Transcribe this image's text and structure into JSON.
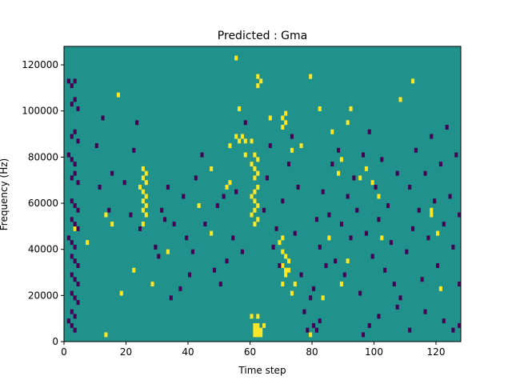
{
  "chart_data": {
    "type": "heatmap",
    "title": "Predicted : Gma",
    "xlabel": "Time step",
    "ylabel": "Frequency (Hz)",
    "xlim": [
      0,
      128
    ],
    "ylim": [
      0,
      128000
    ],
    "xticks": [
      0,
      20,
      40,
      60,
      80,
      100,
      120
    ],
    "yticks": [
      0,
      20000,
      40000,
      60000,
      80000,
      100000,
      120000
    ],
    "grid": false,
    "legend": "none",
    "value_levels": [
      "low",
      "mid",
      "high"
    ],
    "colors": {
      "low": "#440154",
      "mid": "#21918c",
      "high": "#fde725"
    },
    "background_level": "mid",
    "cells": [
      [
        61,
        1,
        "high"
      ],
      [
        62,
        1,
        "high"
      ],
      [
        63,
        1,
        "high"
      ],
      [
        61,
        2,
        "high"
      ],
      [
        62,
        2,
        "high"
      ],
      [
        63,
        2,
        "high"
      ],
      [
        61,
        3,
        "high"
      ],
      [
        62,
        3,
        "high"
      ],
      [
        64,
        3,
        "high"
      ],
      [
        60,
        5,
        "high"
      ],
      [
        62,
        5,
        "high"
      ],
      [
        73,
        10,
        "high"
      ],
      [
        70,
        12,
        "high"
      ],
      [
        71,
        14,
        "high"
      ],
      [
        71,
        15,
        "high"
      ],
      [
        70,
        16,
        "high"
      ],
      [
        72,
        17,
        "high"
      ],
      [
        71,
        18,
        "high"
      ],
      [
        70,
        19,
        "high"
      ],
      [
        69,
        21,
        "high"
      ],
      [
        70,
        22,
        "high"
      ],
      [
        61,
        25,
        "high"
      ],
      [
        62,
        26,
        "high"
      ],
      [
        60,
        27,
        "high"
      ],
      [
        61,
        28,
        "high"
      ],
      [
        62,
        29,
        "high"
      ],
      [
        61,
        30,
        "high"
      ],
      [
        60,
        31,
        "high"
      ],
      [
        61,
        32,
        "high"
      ],
      [
        62,
        33,
        "high"
      ],
      [
        61,
        35,
        "high"
      ],
      [
        62,
        36,
        "high"
      ],
      [
        61,
        37,
        "high"
      ],
      [
        60,
        38,
        "high"
      ],
      [
        62,
        39,
        "high"
      ],
      [
        61,
        40,
        "high"
      ],
      [
        70,
        46,
        "high"
      ],
      [
        71,
        47,
        "high"
      ],
      [
        70,
        48,
        "high"
      ],
      [
        71,
        49,
        "high"
      ],
      [
        62,
        55,
        "high"
      ],
      [
        63,
        56,
        "high"
      ],
      [
        62,
        57,
        "high"
      ],
      [
        25,
        25,
        "high"
      ],
      [
        26,
        27,
        "high"
      ],
      [
        25,
        28,
        "high"
      ],
      [
        26,
        29,
        "high"
      ],
      [
        25,
        30,
        "high"
      ],
      [
        26,
        31,
        "high"
      ],
      [
        25,
        32,
        "high"
      ],
      [
        24,
        33,
        "high"
      ],
      [
        26,
        34,
        "high"
      ],
      [
        25,
        35,
        "high"
      ],
      [
        26,
        36,
        "high"
      ],
      [
        25,
        37,
        "high"
      ],
      [
        58,
        43,
        "high"
      ],
      [
        58,
        40,
        "high"
      ],
      [
        57,
        44,
        "high"
      ],
      [
        95,
        35,
        "high"
      ],
      [
        97,
        37,
        "high"
      ],
      [
        99,
        34,
        "high"
      ],
      [
        101,
        31,
        "high"
      ],
      [
        102,
        22,
        "high"
      ],
      [
        108,
        52,
        "high"
      ],
      [
        118,
        27,
        "high"
      ],
      [
        120,
        23,
        "high"
      ],
      [
        121,
        11,
        "high"
      ],
      [
        112,
        56,
        "high"
      ],
      [
        3,
        24,
        "high"
      ],
      [
        7,
        21,
        "high"
      ],
      [
        13,
        27,
        "high"
      ],
      [
        15,
        25,
        "high"
      ],
      [
        17,
        53,
        "high"
      ],
      [
        13,
        1,
        "high"
      ],
      [
        18,
        10,
        "high"
      ],
      [
        22,
        15,
        "high"
      ],
      [
        28,
        12,
        "high"
      ],
      [
        33,
        19,
        "high"
      ],
      [
        43,
        29,
        "high"
      ],
      [
        47,
        37,
        "high"
      ],
      [
        47,
        23,
        "high"
      ],
      [
        53,
        42,
        "high"
      ],
      [
        56,
        50,
        "high"
      ],
      [
        55,
        61,
        "high"
      ],
      [
        60,
        43,
        "high"
      ],
      [
        66,
        48,
        "high"
      ],
      [
        73,
        41,
        "high"
      ],
      [
        76,
        42,
        "high"
      ],
      [
        82,
        50,
        "high"
      ],
      [
        79,
        57,
        "high"
      ],
      [
        86,
        45,
        "high"
      ],
      [
        88,
        36,
        "high"
      ],
      [
        89,
        39,
        "high"
      ],
      [
        91,
        47,
        "high"
      ],
      [
        92,
        50,
        "high"
      ],
      [
        79,
        1,
        "high"
      ],
      [
        85,
        22,
        "high"
      ],
      [
        83,
        9,
        "high"
      ],
      [
        89,
        12,
        "high"
      ],
      [
        91,
        17,
        "high"
      ],
      [
        74,
        12,
        "high"
      ],
      [
        72,
        15,
        "high"
      ],
      [
        55,
        44,
        "high"
      ],
      [
        56,
        43,
        "high"
      ],
      [
        52,
        33,
        "high"
      ],
      [
        53,
        34,
        "high"
      ],
      [
        118,
        28,
        "high"
      ],
      [
        1,
        56,
        "low"
      ],
      [
        2,
        55,
        "low"
      ],
      [
        3,
        56,
        "low"
      ],
      [
        2,
        51,
        "low"
      ],
      [
        3,
        52,
        "low"
      ],
      [
        4,
        50,
        "low"
      ],
      [
        2,
        44,
        "low"
      ],
      [
        3,
        45,
        "low"
      ],
      [
        4,
        43,
        "low"
      ],
      [
        1,
        40,
        "low"
      ],
      [
        2,
        39,
        "low"
      ],
      [
        3,
        38,
        "low"
      ],
      [
        2,
        35,
        "low"
      ],
      [
        3,
        36,
        "low"
      ],
      [
        4,
        34,
        "low"
      ],
      [
        2,
        30,
        "low"
      ],
      [
        3,
        29,
        "low"
      ],
      [
        4,
        28,
        "low"
      ],
      [
        2,
        26,
        "low"
      ],
      [
        3,
        25,
        "low"
      ],
      [
        4,
        24,
        "low"
      ],
      [
        1,
        22,
        "low"
      ],
      [
        2,
        21,
        "low"
      ],
      [
        3,
        20,
        "low"
      ],
      [
        2,
        18,
        "low"
      ],
      [
        3,
        17,
        "low"
      ],
      [
        4,
        16,
        "low"
      ],
      [
        2,
        14,
        "low"
      ],
      [
        3,
        13,
        "low"
      ],
      [
        4,
        12,
        "low"
      ],
      [
        2,
        10,
        "low"
      ],
      [
        3,
        9,
        "low"
      ],
      [
        4,
        8,
        "low"
      ],
      [
        2,
        6,
        "low"
      ],
      [
        3,
        5,
        "low"
      ],
      [
        1,
        4,
        "low"
      ],
      [
        2,
        3,
        "low"
      ],
      [
        3,
        2,
        "low"
      ],
      [
        10,
        42,
        "low"
      ],
      [
        12,
        48,
        "low"
      ],
      [
        11,
        33,
        "low"
      ],
      [
        14,
        28,
        "low"
      ],
      [
        15,
        36,
        "low"
      ],
      [
        19,
        34,
        "low"
      ],
      [
        21,
        27,
        "low"
      ],
      [
        22,
        41,
        "low"
      ],
      [
        23,
        47,
        "low"
      ],
      [
        24,
        24,
        "low"
      ],
      [
        29,
        20,
        "low"
      ],
      [
        30,
        18,
        "low"
      ],
      [
        31,
        28,
        "low"
      ],
      [
        32,
        26,
        "low"
      ],
      [
        33,
        33,
        "low"
      ],
      [
        34,
        9,
        "low"
      ],
      [
        35,
        25,
        "low"
      ],
      [
        37,
        11,
        "low"
      ],
      [
        38,
        31,
        "low"
      ],
      [
        39,
        22,
        "low"
      ],
      [
        40,
        14,
        "low"
      ],
      [
        41,
        19,
        "low"
      ],
      [
        42,
        35,
        "low"
      ],
      [
        44,
        40,
        "low"
      ],
      [
        45,
        25,
        "low"
      ],
      [
        48,
        15,
        "low"
      ],
      [
        49,
        29,
        "low"
      ],
      [
        50,
        12,
        "low"
      ],
      [
        51,
        31,
        "low"
      ],
      [
        52,
        17,
        "low"
      ],
      [
        54,
        22,
        "low"
      ],
      [
        55,
        32,
        "low"
      ],
      [
        57,
        19,
        "low"
      ],
      [
        58,
        47,
        "low"
      ],
      [
        64,
        28,
        "low"
      ],
      [
        65,
        35,
        "low"
      ],
      [
        66,
        42,
        "low"
      ],
      [
        67,
        20,
        "low"
      ],
      [
        68,
        24,
        "low"
      ],
      [
        69,
        16,
        "low"
      ],
      [
        70,
        30,
        "low"
      ],
      [
        72,
        38,
        "low"
      ],
      [
        73,
        44,
        "low"
      ],
      [
        74,
        23,
        "low"
      ],
      [
        75,
        33,
        "low"
      ],
      [
        76,
        14,
        "low"
      ],
      [
        77,
        6,
        "low"
      ],
      [
        78,
        2,
        "low"
      ],
      [
        79,
        9,
        "low"
      ],
      [
        80,
        11,
        "low"
      ],
      [
        81,
        26,
        "low"
      ],
      [
        82,
        20,
        "low"
      ],
      [
        83,
        32,
        "low"
      ],
      [
        84,
        16,
        "low"
      ],
      [
        85,
        27,
        "low"
      ],
      [
        86,
        38,
        "low"
      ],
      [
        87,
        17,
        "low"
      ],
      [
        88,
        41,
        "low"
      ],
      [
        89,
        25,
        "low"
      ],
      [
        90,
        14,
        "low"
      ],
      [
        91,
        31,
        "low"
      ],
      [
        92,
        22,
        "low"
      ],
      [
        93,
        35,
        "low"
      ],
      [
        94,
        28,
        "low"
      ],
      [
        95,
        10,
        "low"
      ],
      [
        96,
        40,
        "low"
      ],
      [
        97,
        23,
        "low"
      ],
      [
        98,
        45,
        "low"
      ],
      [
        99,
        18,
        "low"
      ],
      [
        100,
        33,
        "low"
      ],
      [
        101,
        26,
        "low"
      ],
      [
        102,
        39,
        "low"
      ],
      [
        103,
        15,
        "low"
      ],
      [
        104,
        29,
        "low"
      ],
      [
        105,
        21,
        "low"
      ],
      [
        106,
        12,
        "low"
      ],
      [
        107,
        36,
        "low"
      ],
      [
        108,
        9,
        "low"
      ],
      [
        110,
        19,
        "low"
      ],
      [
        111,
        33,
        "low"
      ],
      [
        112,
        24,
        "low"
      ],
      [
        113,
        41,
        "low"
      ],
      [
        114,
        28,
        "low"
      ],
      [
        115,
        13,
        "low"
      ],
      [
        116,
        36,
        "low"
      ],
      [
        117,
        22,
        "low"
      ],
      [
        118,
        44,
        "low"
      ],
      [
        119,
        30,
        "low"
      ],
      [
        120,
        16,
        "low"
      ],
      [
        121,
        38,
        "low"
      ],
      [
        122,
        25,
        "low"
      ],
      [
        123,
        46,
        "low"
      ],
      [
        124,
        31,
        "low"
      ],
      [
        125,
        20,
        "low"
      ],
      [
        126,
        40,
        "low"
      ],
      [
        127,
        27,
        "low"
      ],
      [
        127,
        12,
        "low"
      ],
      [
        127,
        3,
        "low"
      ],
      [
        80,
        3,
        "low"
      ],
      [
        81,
        2,
        "low"
      ],
      [
        82,
        4,
        "low"
      ],
      [
        96,
        1,
        "low"
      ],
      [
        98,
        3,
        "low"
      ],
      [
        101,
        5,
        "low"
      ],
      [
        107,
        7,
        "low"
      ],
      [
        111,
        2,
        "low"
      ],
      [
        116,
        6,
        "low"
      ],
      [
        122,
        4,
        "low"
      ],
      [
        125,
        2,
        "low"
      ]
    ]
  }
}
